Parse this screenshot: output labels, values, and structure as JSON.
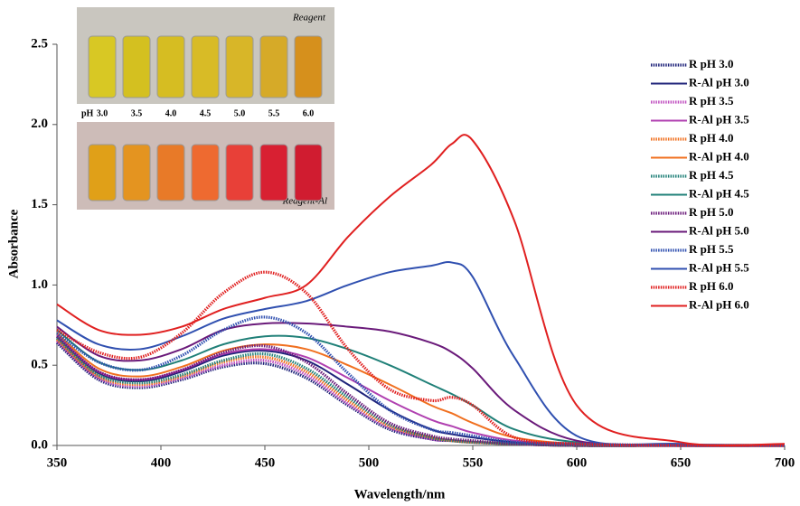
{
  "chart_data": {
    "type": "line",
    "x_label": "Wavelength/nm",
    "y_label": "Absorbance",
    "x": [
      350,
      370,
      390,
      410,
      430,
      450,
      470,
      490,
      510,
      530,
      540,
      550,
      570,
      600,
      650,
      700
    ],
    "xlim": [
      350,
      700
    ],
    "xticks": [
      350,
      400,
      450,
      500,
      550,
      600,
      650,
      700
    ],
    "ylim": [
      0,
      2.5
    ],
    "yticks": [
      {
        "value": 0,
        "label": "0.0"
      },
      0.5,
      {
        "value": 1,
        "label": "1.0"
      },
      1.5,
      {
        "value": 2,
        "label": "2.0"
      },
      2.5
    ],
    "series": [
      {
        "name": "R pH 3.0",
        "color": "#1f237a",
        "dotted": true,
        "values": [
          0.64,
          0.41,
          0.36,
          0.41,
          0.49,
          0.51,
          0.42,
          0.25,
          0.1,
          0.04,
          0.03,
          0.02,
          0.01,
          0,
          0,
          0
        ]
      },
      {
        "name": "R-Al pH 3.0",
        "color": "#1f237a",
        "dotted": false,
        "values": [
          0.68,
          0.45,
          0.4,
          0.46,
          0.56,
          0.59,
          0.53,
          0.38,
          0.22,
          0.1,
          0.07,
          0.05,
          0.02,
          0,
          0,
          0
        ]
      },
      {
        "name": "R pH 3.5",
        "color": "#c050c0",
        "dotted": true,
        "values": [
          0.65,
          0.42,
          0.37,
          0.42,
          0.5,
          0.53,
          0.44,
          0.26,
          0.11,
          0.04,
          0.03,
          0.02,
          0.01,
          0,
          0,
          0
        ]
      },
      {
        "name": "R-Al pH 3.5",
        "color": "#b040b0",
        "dotted": false,
        "values": [
          0.69,
          0.46,
          0.41,
          0.47,
          0.57,
          0.6,
          0.55,
          0.42,
          0.28,
          0.16,
          0.12,
          0.08,
          0.03,
          0.01,
          0,
          0
        ]
      },
      {
        "name": "R pH 4.0",
        "color": "#f07020",
        "dotted": true,
        "values": [
          0.66,
          0.43,
          0.38,
          0.43,
          0.52,
          0.55,
          0.46,
          0.28,
          0.12,
          0.05,
          0.03,
          0.02,
          0.01,
          0,
          0,
          0
        ]
      },
      {
        "name": "R-Al pH 4.0",
        "color": "#f07020",
        "dotted": false,
        "values": [
          0.7,
          0.48,
          0.43,
          0.49,
          0.59,
          0.63,
          0.6,
          0.5,
          0.38,
          0.25,
          0.2,
          0.14,
          0.05,
          0.01,
          0,
          0
        ]
      },
      {
        "name": "R pH 4.5",
        "color": "#208078",
        "dotted": true,
        "values": [
          0.67,
          0.44,
          0.39,
          0.44,
          0.53,
          0.57,
          0.48,
          0.3,
          0.13,
          0.05,
          0.03,
          0.02,
          0.01,
          0,
          0,
          0
        ]
      },
      {
        "name": "R-Al pH 4.5",
        "color": "#208078",
        "dotted": false,
        "values": [
          0.72,
          0.52,
          0.47,
          0.53,
          0.63,
          0.68,
          0.67,
          0.6,
          0.5,
          0.38,
          0.32,
          0.25,
          0.1,
          0.02,
          0,
          0
        ]
      },
      {
        "name": "R pH 5.0",
        "color": "#6a1a7a",
        "dotted": true,
        "values": [
          0.68,
          0.46,
          0.41,
          0.47,
          0.58,
          0.62,
          0.52,
          0.32,
          0.14,
          0.06,
          0.04,
          0.03,
          0.01,
          0,
          0,
          0
        ]
      },
      {
        "name": "R-Al pH 5.0",
        "color": "#6a1a7a",
        "dotted": false,
        "values": [
          0.74,
          0.56,
          0.53,
          0.6,
          0.72,
          0.76,
          0.76,
          0.74,
          0.71,
          0.64,
          0.58,
          0.48,
          0.22,
          0.03,
          0,
          0
        ]
      },
      {
        "name": "R pH 5.5",
        "color": "#3050b0",
        "dotted": true,
        "values": [
          0.7,
          0.52,
          0.47,
          0.56,
          0.72,
          0.8,
          0.7,
          0.45,
          0.22,
          0.1,
          0.08,
          0.06,
          0.02,
          0.01,
          0,
          0
        ]
      },
      {
        "name": "R-Al pH 5.5",
        "color": "#3050b0",
        "dotted": false,
        "values": [
          0.78,
          0.63,
          0.6,
          0.68,
          0.79,
          0.85,
          0.9,
          1.0,
          1.08,
          1.12,
          1.14,
          1.05,
          0.55,
          0.06,
          0.01,
          0
        ]
      },
      {
        "name": "R pH 6.0",
        "color": "#e02020",
        "dotted": true,
        "values": [
          0.72,
          0.58,
          0.55,
          0.7,
          0.95,
          1.08,
          0.95,
          0.6,
          0.35,
          0.28,
          0.3,
          0.25,
          0.05,
          0.01,
          0,
          0
        ]
      },
      {
        "name": "R-Al pH 6.0",
        "color": "#e02020",
        "dotted": false,
        "values": [
          0.88,
          0.72,
          0.69,
          0.74,
          0.85,
          0.92,
          1.0,
          1.3,
          1.55,
          1.75,
          1.88,
          1.9,
          1.4,
          0.25,
          0.02,
          0.01
        ]
      }
    ]
  },
  "inset": {
    "top_label": "Reagent",
    "bottom_label": "Reagent-Al",
    "ph_label": "pH",
    "ph_values": [
      "3.0",
      "3.5",
      "4.0",
      "4.5",
      "5.0",
      "5.5",
      "6.0"
    ]
  }
}
